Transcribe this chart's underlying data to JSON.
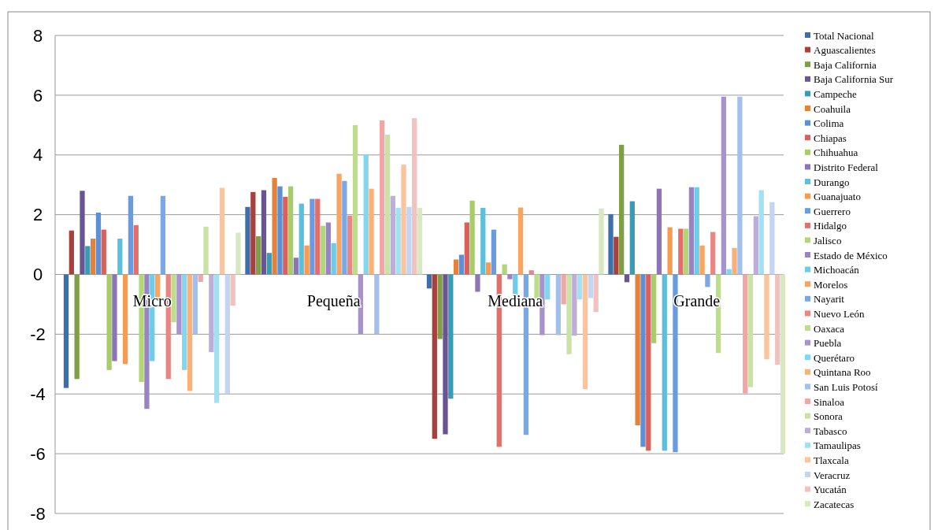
{
  "chart_data": {
    "type": "bar",
    "categories": [
      "Micro",
      "Pequeña",
      "Mediana",
      "Grande"
    ],
    "ylim": [
      -8,
      8
    ],
    "yticks": [
      -8,
      -6,
      -4,
      -2,
      0,
      2,
      4,
      6,
      8
    ],
    "grid": "y",
    "legend": "right",
    "series": [
      {
        "name": "Total Nacional",
        "color": "#3f6ea8",
        "values": [
          -3.8,
          2.26,
          -0.47,
          2.02
        ]
      },
      {
        "name": "Aguascalientes",
        "color": "#a8403e",
        "values": [
          1.47,
          2.76,
          -5.5,
          1.26
        ]
      },
      {
        "name": "Baja California",
        "color": "#7f9f45",
        "values": [
          -3.5,
          1.28,
          -2.16,
          4.34
        ]
      },
      {
        "name": "Baja California Sur",
        "color": "#6a5592",
        "values": [
          2.8,
          2.82,
          -5.35,
          -0.26
        ]
      },
      {
        "name": "Campeche",
        "color": "#3b9bb3",
        "values": [
          0.95,
          0.72,
          -4.16,
          2.45
        ]
      },
      {
        "name": "Coahuila",
        "color": "#e4823a",
        "values": [
          1.2,
          3.23,
          0.5,
          -5.05
        ]
      },
      {
        "name": "Colima",
        "color": "#5b8fd6",
        "values": [
          2.07,
          2.95,
          0.66,
          -5.77
        ]
      },
      {
        "name": "Chiapas",
        "color": "#d9605c",
        "values": [
          1.5,
          2.6,
          1.74,
          -5.9
        ]
      },
      {
        "name": "Chihuahua",
        "color": "#a9cc6a",
        "values": [
          -3.2,
          2.95,
          2.47,
          -2.3
        ]
      },
      {
        "name": "Distrito Federal",
        "color": "#8d74b5",
        "values": [
          -2.9,
          0.56,
          -0.58,
          2.87
        ]
      },
      {
        "name": "Durango",
        "color": "#5cc0dc",
        "values": [
          1.2,
          2.37,
          2.23,
          -5.9
        ]
      },
      {
        "name": "Guanajuato",
        "color": "#f79a52",
        "values": [
          -3.0,
          0.97,
          0.4,
          1.58
        ]
      },
      {
        "name": "Guerrero",
        "color": "#6a9be0",
        "values": [
          2.63,
          2.53,
          1.5,
          -5.95
        ]
      },
      {
        "name": "Hidalgo",
        "color": "#e36f6b",
        "values": [
          1.65,
          2.53,
          -5.77,
          1.53
        ]
      },
      {
        "name": "Jalisco",
        "color": "#b3d67a",
        "values": [
          -3.6,
          1.63,
          0.34,
          1.53
        ]
      },
      {
        "name": "Estado de México",
        "color": "#9a83c2",
        "values": [
          -4.5,
          1.74,
          -0.16,
          2.92
        ]
      },
      {
        "name": "Michoacán",
        "color": "#6dcde8",
        "values": [
          -2.9,
          1.05,
          -0.7,
          2.92
        ]
      },
      {
        "name": "Morelos",
        "color": "#f9a460",
        "values": [
          -0.85,
          3.37,
          2.24,
          0.97
        ]
      },
      {
        "name": "Nayarit",
        "color": "#7aa8e6",
        "values": [
          2.63,
          3.13,
          -5.37,
          -0.42
        ]
      },
      {
        "name": "Nuevo León",
        "color": "#e98582",
        "values": [
          -3.5,
          1.97,
          0.14,
          1.42
        ]
      },
      {
        "name": "Oaxaca",
        "color": "#bedd8c",
        "values": [
          -1.6,
          5.0,
          -0.84,
          -2.63
        ]
      },
      {
        "name": "Puebla",
        "color": "#a692cc",
        "values": [
          -2.0,
          -2.0,
          -2.03,
          5.95
        ]
      },
      {
        "name": "Querétaro",
        "color": "#82d6ee",
        "values": [
          -3.2,
          4.02,
          -0.84,
          0.18
        ]
      },
      {
        "name": "Quintana Roo",
        "color": "#fab077",
        "values": [
          -3.9,
          2.87,
          0,
          0.89
        ]
      },
      {
        "name": "San Luis Potosí",
        "color": "#a3c0ea",
        "values": [
          -2.0,
          -2.0,
          -2.03,
          5.95
        ]
      },
      {
        "name": "Sinaloa",
        "color": "#eea7a5",
        "values": [
          -0.25,
          5.16,
          -1.0,
          -3.98
        ]
      },
      {
        "name": "Sonora",
        "color": "#c9e2a5",
        "values": [
          1.6,
          4.68,
          -2.67,
          -3.77
        ]
      },
      {
        "name": "Tabasco",
        "color": "#bcaed8",
        "values": [
          -2.6,
          2.63,
          -2.05,
          1.95
        ]
      },
      {
        "name": "Tamaulipas",
        "color": "#a2e0f2",
        "values": [
          -4.3,
          2.23,
          -0.84,
          2.82
        ]
      },
      {
        "name": "Tlaxcala",
        "color": "#fbc49c",
        "values": [
          2.9,
          3.68,
          -3.84,
          -2.84
        ]
      },
      {
        "name": "Veracruz",
        "color": "#c3d5f0",
        "values": [
          -4.0,
          2.26,
          -0.79,
          2.42
        ]
      },
      {
        "name": "Yucatán",
        "color": "#f2c2c1",
        "values": [
          -1.05,
          5.23,
          -1.26,
          -3.02
        ]
      },
      {
        "name": "Zacatecas",
        "color": "#d8e8c0",
        "values": [
          1.4,
          2.23,
          2.21,
          -6.0
        ]
      }
    ]
  }
}
